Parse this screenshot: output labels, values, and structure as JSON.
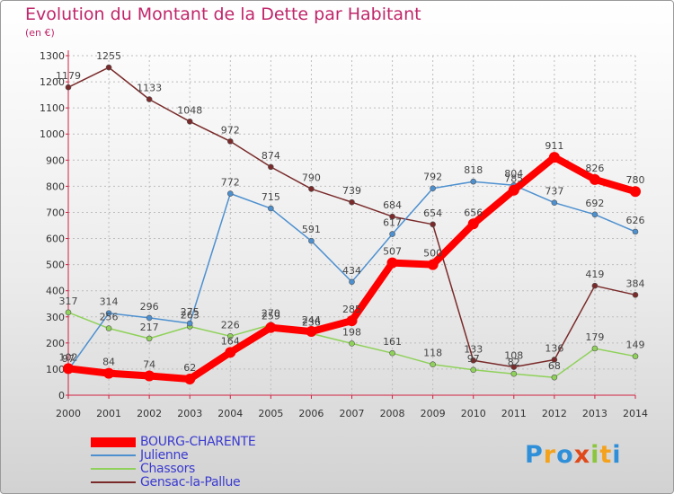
{
  "chart_data": {
    "type": "line",
    "title": "Evolution du Montant de la Dette par Habitant",
    "subtitle": "(en €)",
    "x": [
      2000,
      2001,
      2002,
      2003,
      2004,
      2005,
      2006,
      2007,
      2008,
      2009,
      2010,
      2011,
      2012,
      2013,
      2014
    ],
    "ylim": [
      0,
      1300
    ],
    "yticks": [
      0,
      100,
      200,
      300,
      400,
      500,
      600,
      700,
      800,
      900,
      1000,
      1100,
      1200,
      1300
    ],
    "grid": true,
    "legend_position": "bottom-left",
    "series": [
      {
        "name": "BOURG-CHARENTE",
        "color": "#ff0000",
        "values": [
          102,
          84,
          74,
          62,
          164,
          259,
          244,
          285,
          507,
          500,
          656,
          785,
          911,
          826,
          780
        ]
      },
      {
        "name": "Julienne",
        "color": "#4d90d0",
        "values": [
          97,
          314,
          296,
          275,
          null,
          715,
          591,
          434,
          617,
          792,
          818,
          804,
          737,
          692,
          626
        ]
      },
      {
        "name": "Chassors",
        "color": "#8fd15a",
        "values": [
          317,
          256,
          217,
          263,
          226,
          270,
          236,
          198,
          161,
          118,
          97,
          82,
          68,
          179,
          149
        ]
      },
      {
        "name": "Gensac-la-Pallue",
        "color": "#7a2a2a",
        "values": [
          1179,
          1255,
          1133,
          1048,
          972,
          874,
          790,
          739,
          684,
          654,
          133,
          108,
          136,
          419,
          384
        ]
      }
    ],
    "julienne_2004": 772
  },
  "logo": {
    "text": "Proxiti"
  }
}
